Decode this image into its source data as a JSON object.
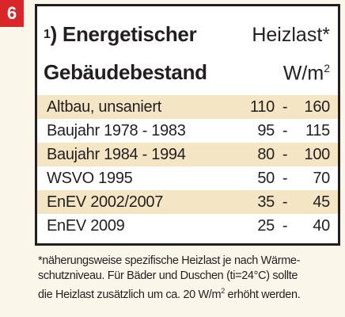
{
  "badge": "6",
  "header": {
    "footnote_mark": "1",
    "footnote_bracket": ")",
    "title_line1": "Energetischer",
    "title_line2": "Gebäudebestand",
    "col_title": "Heizlast*",
    "col_unit_base": "W/m",
    "col_unit_exp": "2"
  },
  "rows": [
    {
      "label": "Altbau, unsaniert",
      "low": "110",
      "high": "160",
      "dash": "-",
      "shaded": true
    },
    {
      "label": "Baujahr 1978 - 1983",
      "low": "95",
      "high": "115",
      "dash": "-",
      "shaded": false
    },
    {
      "label": "Baujahr 1984 - 1994",
      "low": "80",
      "high": "100",
      "dash": "-",
      "shaded": true
    },
    {
      "label": "WSVO 1995",
      "low": "50",
      "high": "70",
      "dash": "-",
      "shaded": false
    },
    {
      "label": "EnEV 2002/2007",
      "low": "35",
      "high": "45",
      "dash": "-",
      "shaded": true
    },
    {
      "label": "EnEV 2009",
      "low": "25",
      "high": "40",
      "dash": "-",
      "shaded": false
    }
  ],
  "note": {
    "line1": "*näherungsweise spezifische Heizlast je nach Wärme-",
    "line2": "schutzniveau. Für Bäder und Duschen (ti=24°C) sollte",
    "line3_before": "die Heizlast zusätzlich um ca. 20 W/m",
    "line3_exp": "2",
    "line3_after": " erhöht werden."
  }
}
